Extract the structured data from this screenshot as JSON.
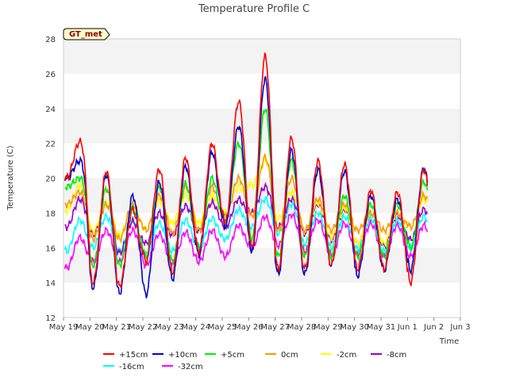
{
  "chart_data": {
    "type": "line",
    "title": "Temperature Profile C",
    "xlabel": "Time",
    "ylabel": "Temperature (C)",
    "ylim": [
      12,
      28
    ],
    "xlim": [
      "2023-05-19",
      "2023-06-03"
    ],
    "x_ticks": [
      "May 19",
      "May 20",
      "May 21",
      "May 22",
      "May 23",
      "May 24",
      "May 25",
      "May 26",
      "May 27",
      "May 28",
      "May 29",
      "May 30",
      "May 31",
      "Jun 1",
      "Jun 2",
      "Jun 3"
    ],
    "y_ticks": [
      "12",
      "14",
      "16",
      "18",
      "20",
      "22",
      "24",
      "26",
      "28"
    ],
    "badge": "GT_met",
    "grid": "horizontal bands",
    "legend_position": "bottom",
    "days": [
      "May 19",
      "May 20",
      "May 21",
      "May 22",
      "May 23",
      "May 24",
      "May 25",
      "May 26",
      "May 27",
      "May 28",
      "May 29",
      "May 30",
      "May 31",
      "Jun 1",
      "Jun 2"
    ],
    "series": [
      {
        "name": "+15cm",
        "color": "#ff0000",
        "max": [
          22.1,
          20.4,
          18.2,
          20.5,
          21.2,
          22.0,
          24.4,
          27.0,
          22.3,
          21.0,
          20.8,
          19.3,
          19.2,
          20.5,
          22.2
        ],
        "min": [
          20.0,
          14.0,
          13.8,
          15.2,
          14.6,
          15.8,
          17.5,
          16.0,
          14.8,
          14.8,
          15.0,
          14.8,
          14.8,
          14.0,
          16.0
        ]
      },
      {
        "name": "+10cm",
        "color": "#0000cc",
        "max": [
          21.0,
          20.2,
          19.0,
          19.8,
          20.7,
          21.5,
          23.0,
          25.7,
          21.6,
          20.5,
          20.4,
          19.0,
          18.8,
          20.6,
          22.0
        ],
        "min": [
          20.0,
          13.7,
          13.4,
          13.3,
          14.2,
          15.6,
          17.2,
          15.7,
          14.5,
          14.5,
          15.0,
          14.4,
          14.7,
          14.7,
          16.5
        ]
      },
      {
        "name": "+5cm",
        "color": "#00ee00",
        "max": [
          20.0,
          19.4,
          18.3,
          19.5,
          19.7,
          20.0,
          22.0,
          24.0,
          21.0,
          20.5,
          19.0,
          18.5,
          18.5,
          19.8,
          21.0
        ],
        "min": [
          19.5,
          15.0,
          15.0,
          15.5,
          15.2,
          16.0,
          17.5,
          16.5,
          15.5,
          15.5,
          15.5,
          15.5,
          15.5,
          16.0,
          17.0
        ]
      },
      {
        "name": "0cm",
        "color": "#ff9900",
        "max": [
          19.2,
          18.5,
          18.5,
          19.0,
          19.5,
          19.5,
          20.0,
          21.2,
          20.0,
          18.8,
          18.5,
          18.0,
          18.0,
          19.0,
          19.6
        ],
        "min": [
          18.5,
          16.5,
          16.5,
          17.0,
          16.8,
          17.0,
          17.8,
          17.8,
          17.0,
          17.0,
          17.0,
          17.0,
          17.0,
          17.2,
          18.0
        ]
      },
      {
        "name": "-2cm",
        "color": "#ffff00",
        "max": [
          19.6,
          18.6,
          18.4,
          18.7,
          19.0,
          19.0,
          19.5,
          21.0,
          19.2,
          18.6,
          18.3,
          18.0,
          18.0,
          18.8,
          19.5
        ]
      },
      {
        "name": "-8cm",
        "color": "#9900cc",
        "max": [
          18.8,
          18.5,
          17.5,
          18.0,
          18.4,
          18.6,
          18.8,
          19.5,
          18.8,
          18.5,
          18.2,
          18.0,
          17.9,
          18.2,
          18.7
        ]
      },
      {
        "name": "-16cm",
        "color": "#00ffff",
        "max": [
          17.6,
          17.8,
          17.6,
          17.4,
          17.6,
          17.7,
          18.2,
          18.8,
          18.5,
          18.0,
          17.8,
          17.7,
          17.6,
          17.8,
          18.2
        ]
      },
      {
        "name": "-32cm",
        "color": "#ff00ff",
        "max": [
          16.6,
          17.0,
          17.0,
          16.8,
          16.9,
          17.0,
          17.3,
          17.8,
          17.9,
          17.6,
          17.4,
          17.4,
          17.3,
          17.3,
          17.6
        ]
      }
    ]
  }
}
